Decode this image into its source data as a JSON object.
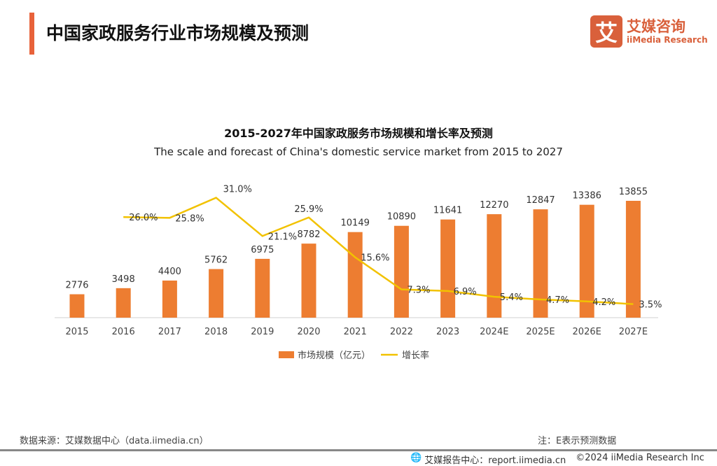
{
  "header": {
    "title": "中国家政服务行业市场规模及预测",
    "logo_mark": "艾",
    "logo_cn": "艾媒咨询",
    "logo_en": "iiMedia Research"
  },
  "chart_data": {
    "type": "bar+line",
    "title": "2015-2027年中国家政服务市场规模和增长率及预测",
    "subtitle": "The scale and forecast of China's domestic service market from 2015 to 2027",
    "categories": [
      "2015",
      "2016",
      "2017",
      "2018",
      "2019",
      "2020",
      "2021",
      "2022",
      "2023",
      "2024E",
      "2025E",
      "2026E",
      "2027E"
    ],
    "series": [
      {
        "name": "市场规模（亿元）",
        "type": "bar",
        "color": "#ed7d31",
        "values": [
          2776,
          3498,
          4400,
          5762,
          6975,
          8782,
          10149,
          10890,
          11641,
          12270,
          12847,
          13386,
          13855
        ],
        "labels": [
          "2776",
          "3498",
          "4400",
          "5762",
          "6975",
          "8782",
          "10149",
          "10890",
          "11641",
          "12270",
          "12847",
          "13386",
          "13855"
        ]
      },
      {
        "name": "增长率",
        "type": "line",
        "color": "#f2c200",
        "values": [
          null,
          26.0,
          25.8,
          31.0,
          21.1,
          25.9,
          15.6,
          7.3,
          6.9,
          5.4,
          4.7,
          4.2,
          3.5
        ],
        "labels": [
          "",
          "26.0%",
          "25.8%",
          "31.0%",
          "21.1%",
          "25.9%",
          "15.6%",
          "7.3%",
          "6.9%",
          "5.4%",
          "4.7%",
          "4.2%",
          "3.5%"
        ]
      }
    ],
    "legend": "bottom",
    "grid": false
  },
  "footer": {
    "source": "数据来源：艾媒数据中心（data.iimedia.cn）",
    "note": "注：E表示预测数据",
    "report": "艾媒报告中心：report.iimedia.cn",
    "copyright": "©2024  iiMedia Research  Inc"
  }
}
